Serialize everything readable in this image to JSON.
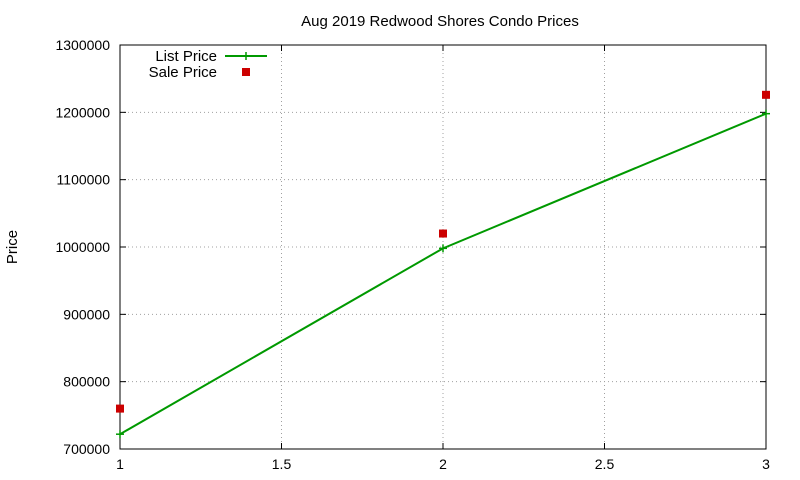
{
  "chart_data": {
    "type": "line",
    "title": "Aug 2019 Redwood Shores Condo Prices",
    "xlabel": "",
    "ylabel": "Price",
    "xlim": [
      1,
      3
    ],
    "ylim": [
      700000,
      1300000
    ],
    "x_ticks": [
      "1",
      "1.5",
      "2",
      "2.5",
      "3"
    ],
    "y_ticks": [
      "700000",
      "800000",
      "900000",
      "1000000",
      "1100000",
      "1200000",
      "1300000"
    ],
    "grid": true,
    "legend_position": "top-left",
    "series": [
      {
        "name": "List Price",
        "style": "linespoints",
        "marker": "plus",
        "color": "#009900",
        "x": [
          1,
          2,
          3
        ],
        "y": [
          722000,
          998000,
          1198000
        ]
      },
      {
        "name": "Sale Price",
        "style": "points",
        "marker": "square",
        "color": "#cc0000",
        "x": [
          1,
          2,
          3
        ],
        "y": [
          760000,
          1020000,
          1226000
        ]
      }
    ]
  }
}
